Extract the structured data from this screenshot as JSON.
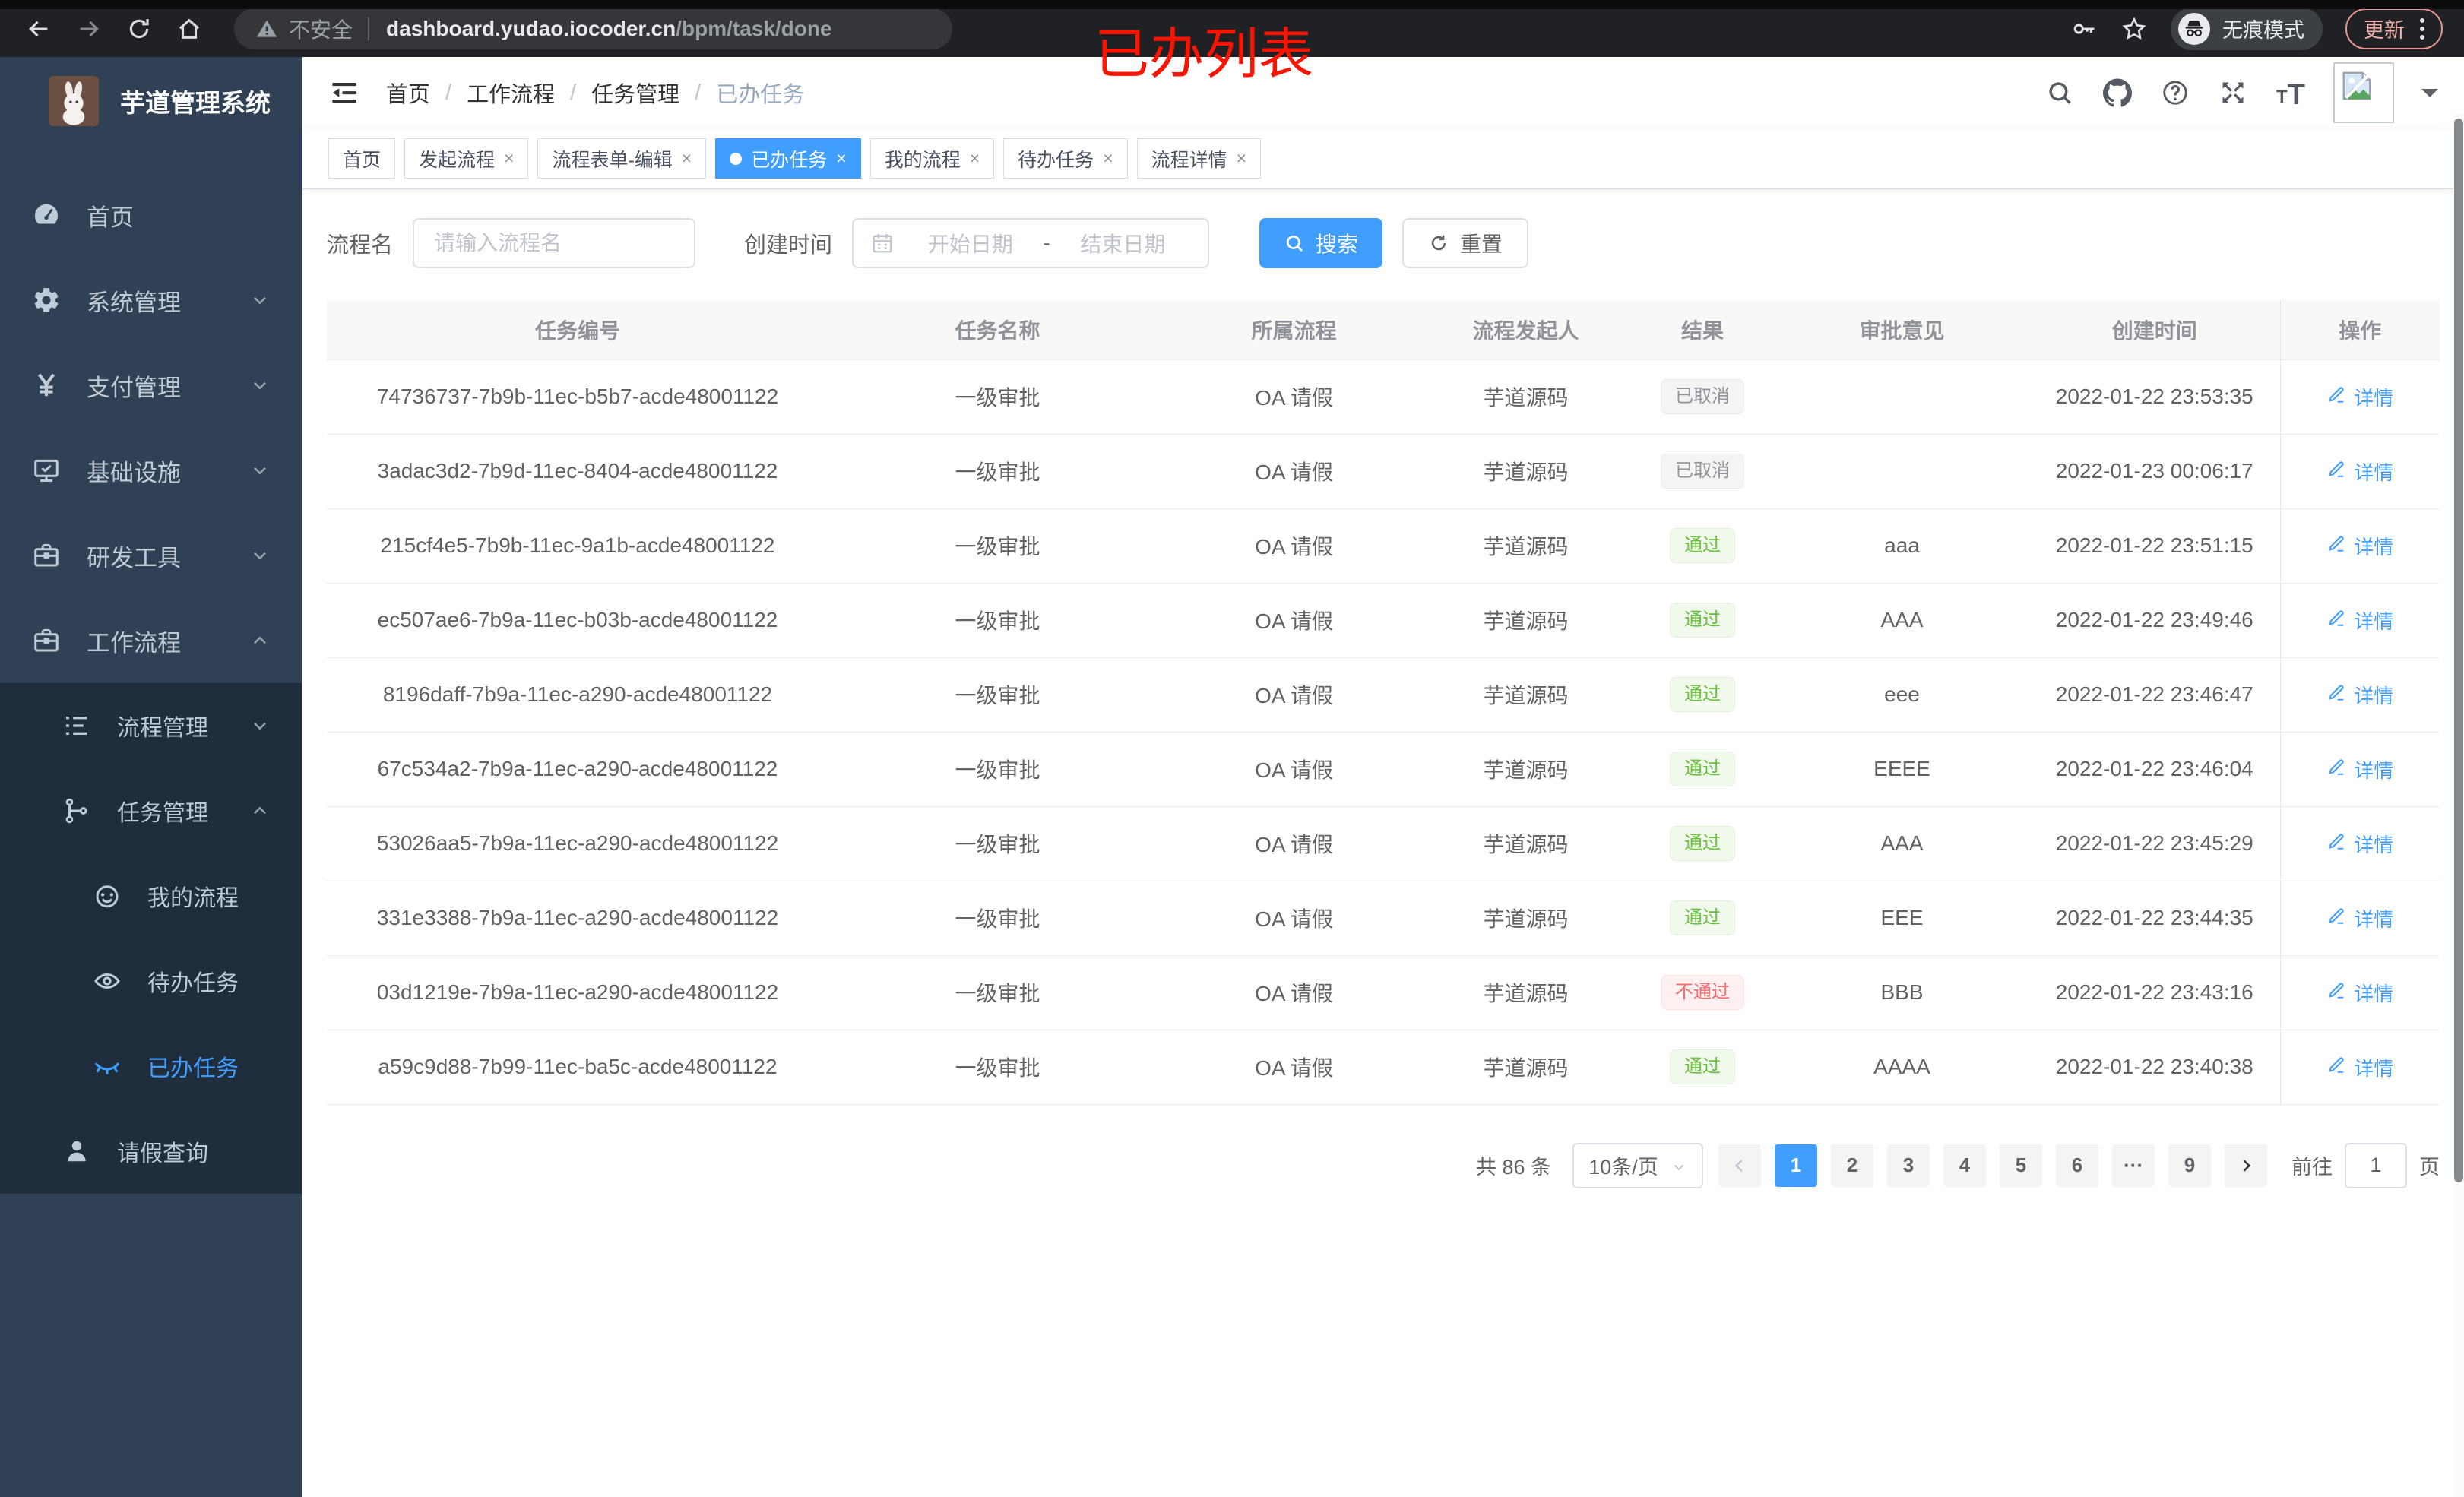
{
  "browser": {
    "security_label": "不安全",
    "url_host": "dashboard.yudao.iocoder.cn",
    "url_path": "/bpm/task/done",
    "incognito_label": "无痕模式",
    "update_label": "更新"
  },
  "annotation": "已办列表",
  "sidebar": {
    "logo_title": "芋道管理系统",
    "menu": [
      {
        "key": "home",
        "label": "首页",
        "icon": "dashboard-icon",
        "level": 0,
        "submenu": false
      },
      {
        "key": "system",
        "label": "系统管理",
        "icon": "gear-icon",
        "level": 0,
        "chevron": "down",
        "submenu": false
      },
      {
        "key": "payment",
        "label": "支付管理",
        "icon": "yen-icon",
        "level": 0,
        "chevron": "down",
        "submenu": false
      },
      {
        "key": "infrastructure",
        "label": "基础设施",
        "icon": "monitor-icon",
        "level": 0,
        "chevron": "down",
        "submenu": false
      },
      {
        "key": "dev-tools",
        "label": "研发工具",
        "icon": "briefcase-icon",
        "level": 0,
        "chevron": "down",
        "submenu": false
      },
      {
        "key": "workflow",
        "label": "工作流程",
        "icon": "briefcase-icon",
        "level": 0,
        "chevron": "up",
        "submenu": false
      },
      {
        "key": "process-mgmt",
        "label": "流程管理",
        "icon": "list-icon",
        "level": 1,
        "chevron": "down",
        "submenu": true
      },
      {
        "key": "task-mgmt",
        "label": "任务管理",
        "icon": "tree-icon",
        "level": 1,
        "chevron": "up",
        "submenu": true
      },
      {
        "key": "my-process",
        "label": "我的流程",
        "icon": "face-icon",
        "level": 2,
        "submenu": true
      },
      {
        "key": "todo-tasks",
        "label": "待办任务",
        "icon": "eye-icon",
        "level": 2,
        "submenu": true
      },
      {
        "key": "done-tasks",
        "label": "已办任务",
        "icon": "eye-closed-icon",
        "level": 2,
        "submenu": true,
        "active": true
      },
      {
        "key": "leave-query",
        "label": "请假查询",
        "icon": "user-icon",
        "level": 1,
        "submenu": true
      }
    ]
  },
  "header": {
    "breadcrumb": [
      {
        "label": "首页",
        "current": false
      },
      {
        "label": "工作流程",
        "current": false
      },
      {
        "label": "任务管理",
        "current": false
      },
      {
        "label": "已办任务",
        "current": true
      }
    ]
  },
  "tabs": [
    {
      "label": "首页",
      "closable": false,
      "active": false
    },
    {
      "label": "发起流程",
      "closable": true,
      "active": false
    },
    {
      "label": "流程表单-编辑",
      "closable": true,
      "active": false
    },
    {
      "label": "已办任务",
      "closable": true,
      "active": true
    },
    {
      "label": "我的流程",
      "closable": true,
      "active": false
    },
    {
      "label": "待办任务",
      "closable": true,
      "active": false
    },
    {
      "label": "流程详情",
      "closable": true,
      "active": false
    }
  ],
  "filters": {
    "name_label": "流程名",
    "name_placeholder": "请输入流程名",
    "time_label": "创建时间",
    "start_placeholder": "开始日期",
    "range_separator": "-",
    "end_placeholder": "结束日期",
    "search_label": "搜索",
    "reset_label": "重置"
  },
  "table": {
    "columns": [
      "任务编号",
      "任务名称",
      "所属流程",
      "流程发起人",
      "结果",
      "审批意见",
      "创建时间",
      "操作"
    ],
    "detail_label": "详情",
    "rows": [
      {
        "id": "74736737-7b9b-11ec-b5b7-acde48001122",
        "name": "一级审批",
        "process": "OA 请假",
        "starter": "芋道源码",
        "result": "已取消",
        "result_type": "info",
        "opinion": "",
        "time": "2022-01-22 23:53:35"
      },
      {
        "id": "3adac3d2-7b9d-11ec-8404-acde48001122",
        "name": "一级审批",
        "process": "OA 请假",
        "starter": "芋道源码",
        "result": "已取消",
        "result_type": "info",
        "opinion": "",
        "time": "2022-01-23 00:06:17"
      },
      {
        "id": "215cf4e5-7b9b-11ec-9a1b-acde48001122",
        "name": "一级审批",
        "process": "OA 请假",
        "starter": "芋道源码",
        "result": "通过",
        "result_type": "success",
        "opinion": "aaa",
        "time": "2022-01-22 23:51:15"
      },
      {
        "id": "ec507ae6-7b9a-11ec-b03b-acde48001122",
        "name": "一级审批",
        "process": "OA 请假",
        "starter": "芋道源码",
        "result": "通过",
        "result_type": "success",
        "opinion": "AAA",
        "time": "2022-01-22 23:49:46"
      },
      {
        "id": "8196daff-7b9a-11ec-a290-acde48001122",
        "name": "一级审批",
        "process": "OA 请假",
        "starter": "芋道源码",
        "result": "通过",
        "result_type": "success",
        "opinion": "eee",
        "time": "2022-01-22 23:46:47"
      },
      {
        "id": "67c534a2-7b9a-11ec-a290-acde48001122",
        "name": "一级审批",
        "process": "OA 请假",
        "starter": "芋道源码",
        "result": "通过",
        "result_type": "success",
        "opinion": "EEEE",
        "time": "2022-01-22 23:46:04"
      },
      {
        "id": "53026aa5-7b9a-11ec-a290-acde48001122",
        "name": "一级审批",
        "process": "OA 请假",
        "starter": "芋道源码",
        "result": "通过",
        "result_type": "success",
        "opinion": "AAA",
        "time": "2022-01-22 23:45:29"
      },
      {
        "id": "331e3388-7b9a-11ec-a290-acde48001122",
        "name": "一级审批",
        "process": "OA 请假",
        "starter": "芋道源码",
        "result": "通过",
        "result_type": "success",
        "opinion": "EEE",
        "time": "2022-01-22 23:44:35"
      },
      {
        "id": "03d1219e-7b9a-11ec-a290-acde48001122",
        "name": "一级审批",
        "process": "OA 请假",
        "starter": "芋道源码",
        "result": "不通过",
        "result_type": "danger",
        "opinion": "BBB",
        "time": "2022-01-22 23:43:16"
      },
      {
        "id": "a59c9d88-7b99-11ec-ba5c-acde48001122",
        "name": "一级审批",
        "process": "OA 请假",
        "starter": "芋道源码",
        "result": "通过",
        "result_type": "success",
        "opinion": "AAAA",
        "time": "2022-01-22 23:40:38"
      }
    ]
  },
  "pagination": {
    "total_label": "共 86 条",
    "page_size": "10条/页",
    "pages": [
      "1",
      "2",
      "3",
      "4",
      "5",
      "6",
      "···",
      "9"
    ],
    "active_page": "1",
    "goto_label": "前往",
    "goto_value": "1",
    "page_unit": "页"
  },
  "colors": {
    "accent": "#409eff",
    "success": "#67c23a",
    "danger": "#f56c6c",
    "info": "#909399",
    "sidebar_bg": "#304156",
    "submenu_bg": "#1f2d3d",
    "annotation_red": "#f91504"
  }
}
